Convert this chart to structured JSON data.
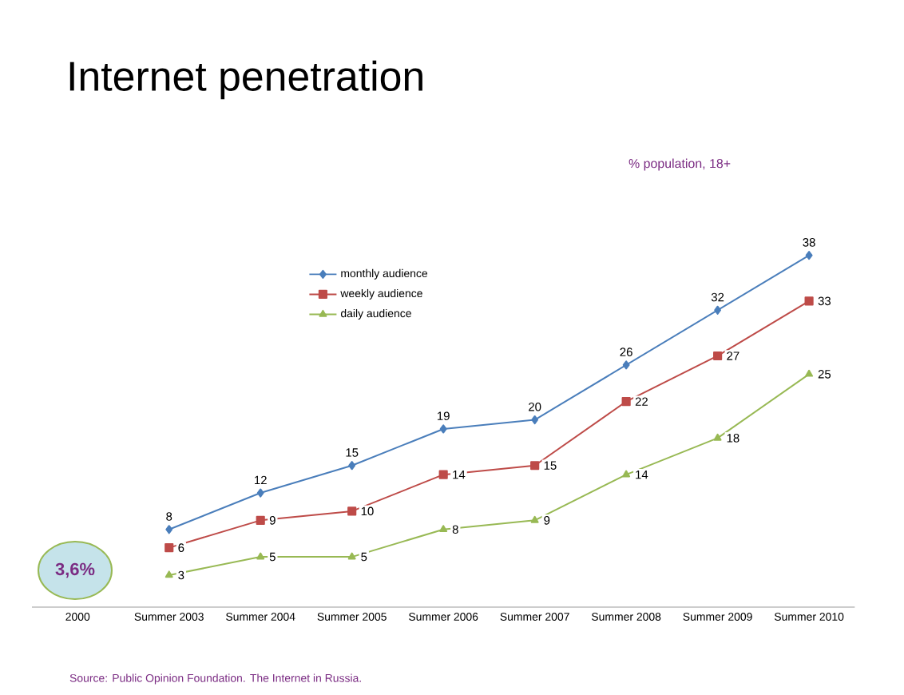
{
  "chart_data": {
    "type": "line",
    "title": "Internet penetration",
    "subtitle": "% population, 18+",
    "categories": [
      "2000",
      "Summer 2003",
      "Summer 2004",
      "Summer 2005",
      "Summer 2006",
      "Summer 2007",
      "Summer 2008",
      "Summer 2009",
      "Summer 2010"
    ],
    "series": [
      {
        "name": "monthly audience",
        "color": "#4a7ebb",
        "marker": "diamond",
        "values": [
          null,
          8,
          12,
          15,
          19,
          20,
          26,
          32,
          38
        ]
      },
      {
        "name": "weekly audience",
        "color": "#be4b48",
        "marker": "square",
        "values": [
          null,
          6,
          9,
          10,
          14,
          15,
          22,
          27,
          33
        ]
      },
      {
        "name": "daily audience",
        "color": "#98b954",
        "marker": "triangle",
        "values": [
          null,
          3,
          5,
          5,
          8,
          9,
          14,
          18,
          25
        ]
      }
    ],
    "data_labels": true,
    "legend": "top left",
    "grid": false,
    "annotations": [
      "3,6%",
      "Source: Public Opinion Foundation. The Internet in Russia."
    ]
  }
}
